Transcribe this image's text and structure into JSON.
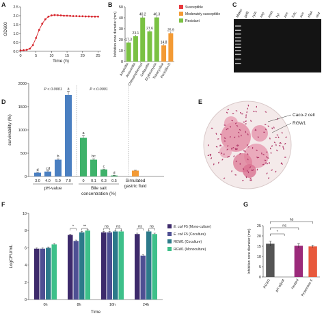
{
  "panels": {
    "A": "A",
    "B": "B",
    "C": "C",
    "D": "D",
    "E": "E",
    "F": "F",
    "G": "G"
  },
  "chart_data": [
    {
      "panel": "A",
      "type": "line",
      "xlabel": "Time (h)",
      "ylabel": "OD600",
      "xlim": [
        0,
        26
      ],
      "ylim": [
        0,
        2.5
      ],
      "xticks": [
        0,
        5,
        10,
        15,
        20,
        25
      ],
      "yticks": [
        0.0,
        0.5,
        1.0,
        1.5,
        2.0,
        2.5
      ],
      "x": [
        0,
        1,
        2,
        3,
        4,
        5,
        6,
        7,
        8,
        9,
        10,
        11,
        12,
        13,
        14,
        15,
        16,
        17,
        18,
        19,
        20,
        21,
        22,
        23,
        24,
        25
      ],
      "y": [
        0.05,
        0.06,
        0.08,
        0.15,
        0.35,
        0.75,
        1.2,
        1.55,
        1.8,
        1.95,
        2.02,
        2.04,
        2.03,
        2.02,
        2.0,
        2.0,
        1.99,
        1.98,
        1.98,
        1.97,
        1.97,
        1.96,
        1.96,
        1.95,
        1.95,
        1.95
      ],
      "color": "#d6232a"
    },
    {
      "panel": "B",
      "type": "bar",
      "ylabel": "Inhibition zone diameter (mm)",
      "ylim": [
        0,
        50
      ],
      "yticks": [
        0,
        10,
        20,
        30,
        40,
        50
      ],
      "categories": [
        "Ampicillin",
        "Amoxicillin",
        "Chloramphenicol",
        "Ceftazidin",
        "Erythromycin",
        "Tetracycline",
        "Penicillin G"
      ],
      "values": [
        17.3,
        23.1,
        40.2,
        27.6,
        40.3,
        14.8,
        25.9
      ],
      "value_labels": [
        "17.3",
        "23.1",
        "40.2",
        "27.6",
        "40.3",
        "14.8",
        "25.9"
      ],
      "status": [
        "Resistant",
        "Resistant",
        "Resistant",
        "Resistant",
        "Resistant",
        "Moderately susceptible",
        "Moderately susceptible"
      ],
      "legend": [
        {
          "name": "Susceptible",
          "color": "#e8383d"
        },
        {
          "name": "Moderately susceptible",
          "color": "#f39a34"
        },
        {
          "name": "Resistant",
          "color": "#7ac143"
        }
      ]
    },
    {
      "panel": "C",
      "type": "other",
      "lanes": [
        "Maker",
        "gelE",
        "cylA",
        "esp",
        "asa1",
        "hyl",
        "ace",
        "lcdc",
        "ace",
        "efaA",
        "cpd"
      ]
    },
    {
      "panel": "D",
      "type": "bar",
      "ylabel": "survivability (%)",
      "ylim": [
        0,
        2000
      ],
      "yticks": [
        0,
        500,
        1000,
        1500,
        2000
      ],
      "groups": [
        {
          "label": "pH-value",
          "categories": [
            "3.0",
            "4.0",
            "5.0",
            "7.0"
          ],
          "values": [
            80,
            105,
            360,
            1750
          ],
          "errors": [
            10,
            15,
            20,
            80
          ],
          "letters": [
            "d",
            "cd",
            "b",
            "a"
          ],
          "color": "#4a7fc1",
          "p": "P < 0.0001"
        },
        {
          "label": "Bile salt concentration (%)",
          "categories": [
            "0",
            "0.1",
            "0.3",
            "0.5"
          ],
          "values": [
            830,
            360,
            150,
            20
          ],
          "errors": [
            50,
            20,
            10,
            5
          ],
          "letters": [
            "a",
            "bc",
            "c",
            "d"
          ],
          "color": "#3eb26a",
          "p": "P < 0.0001"
        },
        {
          "label": "Simulated gastric fluid",
          "categories": [
            ""
          ],
          "values": [
            125
          ],
          "errors": [
            8
          ],
          "letters": [
            ""
          ],
          "color": "#f39a34"
        }
      ]
    },
    {
      "panel": "E",
      "type": "other",
      "annotations": [
        "Caco-2 cell",
        "RGW1"
      ]
    },
    {
      "panel": "F",
      "type": "bar",
      "xlabel": "Time",
      "ylabel": "LogCFU/mL",
      "ylim": [
        0,
        10
      ],
      "yticks": [
        0,
        2,
        4,
        6,
        8,
        10
      ],
      "categories": [
        "0h",
        "8h",
        "16h",
        "24h"
      ],
      "series": [
        {
          "name": "E. coli F5 (Mono-culture)",
          "color": "#3d2a6b",
          "values": [
            5.9,
            7.5,
            7.8,
            7.6
          ],
          "errors": [
            0.1,
            0.1,
            0.1,
            0.1
          ]
        },
        {
          "name": "E. coli F5 (Coculture)",
          "color": "#4e4f93",
          "values": [
            5.9,
            6.8,
            7.8,
            5.1
          ],
          "errors": [
            0.1,
            0.1,
            0.1,
            0.1
          ]
        },
        {
          "name": "RGW1 (Coculture)",
          "color": "#2c7a8a",
          "values": [
            6.0,
            7.8,
            7.9,
            7.9
          ],
          "errors": [
            0.1,
            0.1,
            0.1,
            0.1
          ]
        },
        {
          "name": "RGW1 (Monoculture)",
          "color": "#3ec08a",
          "values": [
            6.4,
            8.0,
            7.9,
            7.6
          ],
          "errors": [
            0.1,
            0.1,
            0.1,
            0.1
          ]
        }
      ],
      "significance": [
        "*",
        "**",
        "ns",
        "ns",
        "ns",
        "ns",
        "***",
        "ns"
      ]
    },
    {
      "panel": "G",
      "type": "bar",
      "ylabel": "Inhibition zone diameter (mm)",
      "ylim": [
        0,
        25
      ],
      "yticks": [
        0,
        5,
        10,
        15,
        20,
        25
      ],
      "categories": [
        "RGW1",
        "pH adjust",
        "Heated",
        "Proteinase K"
      ],
      "values": [
        16.2,
        0,
        15.2,
        14.9
      ],
      "errors": [
        1.2,
        0,
        1.1,
        0.6
      ],
      "colors": [
        "#555555",
        "#555555",
        "#9b2a7a",
        "#e8593d"
      ],
      "significance": [
        "*",
        "ns",
        "ns"
      ]
    }
  ]
}
